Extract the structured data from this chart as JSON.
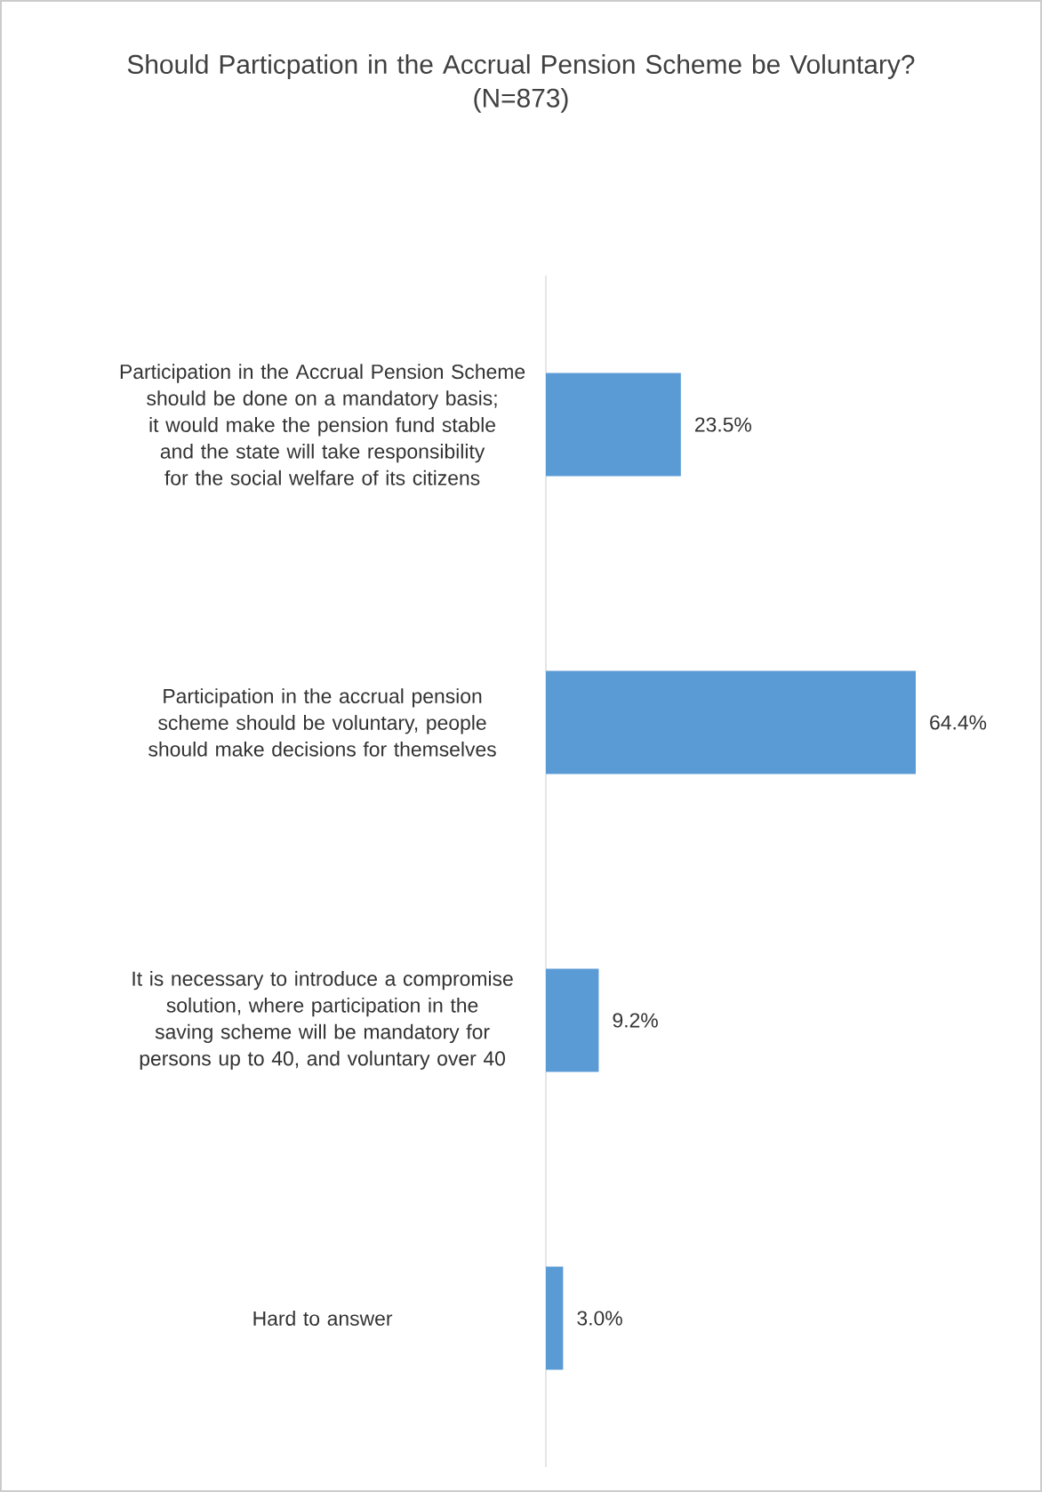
{
  "chart_data": {
    "type": "bar",
    "orientation": "horizontal",
    "title": "Should Particpation in the Accrual Pension Scheme be Voluntary?",
    "subtitle": "(N=873)",
    "categories": [
      "Participation in  the Accrual Pension Scheme should be done on a  mandatory  basis; it would make the pension fund stable and the state will take responsibility for the social welfare of its citizens",
      "Participation in the accrual pension scheme should be voluntary, people should make decisions for themselves",
      "It is necessary to introduce a compromise solution, where participation in the saving scheme will be mandatory for persons up to 40, and voluntary over 40",
      "Hard to answer"
    ],
    "values": [
      23.5,
      64.4,
      9.2,
      3.0
    ],
    "value_labels": [
      "23.5%",
      "64.4%",
      "9.2%",
      "3.0%"
    ],
    "color": "#5b9bd5",
    "tick_labels": "y"
  }
}
